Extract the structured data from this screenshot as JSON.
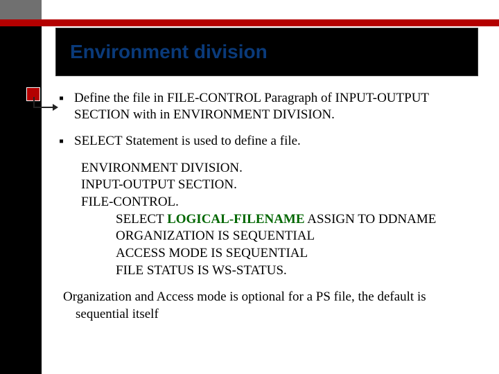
{
  "colors": {
    "red": "#b40000",
    "black": "#000000",
    "gray": "#707070",
    "title": "#0a3a7a",
    "green": "#006600"
  },
  "title": "Environment division",
  "bullets": [
    {
      "line1": "Define the file in FILE-CONTROL Paragraph of  INPUT-OUTPUT",
      "line2": "SECTION with in ENVIRONMENT DIVISION."
    },
    {
      "line1": "SELECT Statement is used to define a file."
    }
  ],
  "code": {
    "l1": "ENVIRONMENT DIVISION.",
    "l2": "INPUT-OUTPUT SECTION.",
    "l3": "FILE-CONTROL.",
    "l4a": "SELECT ",
    "l4b": "LOGICAL-FILENAME",
    "l4c": " ASSIGN TO DDNAME",
    "l5": "ORGANIZATION IS SEQUENTIAL",
    "l6": "ACCESS MODE IS SEQUENTIAL",
    "l7": "FILE STATUS IS WS-STATUS."
  },
  "footer": {
    "l1": "Organization and Access mode is optional for a PS file, the default is",
    "l2": "sequential  itself"
  }
}
